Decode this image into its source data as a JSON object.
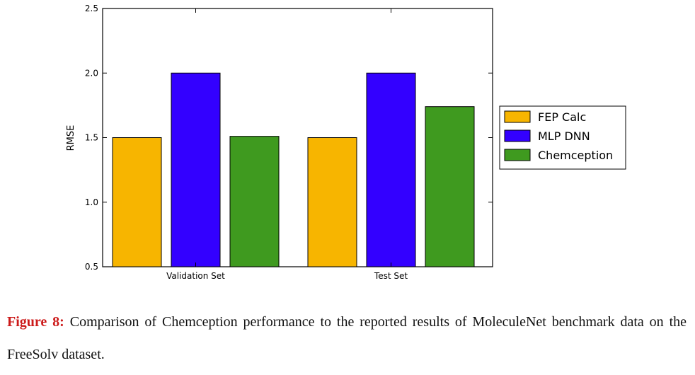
{
  "chart_data": {
    "type": "bar",
    "categories": [
      "Validation Set",
      "Test Set"
    ],
    "series": [
      {
        "name": "FEP Calc",
        "color": "#f7b500",
        "values": [
          1.5,
          1.5
        ]
      },
      {
        "name": "MLP DNN",
        "color": "#3300ff",
        "values": [
          2.0,
          2.0
        ]
      },
      {
        "name": "Chemception",
        "color": "#3f9a1f",
        "values": [
          1.51,
          1.74
        ]
      }
    ],
    "ylabel": "RMSE",
    "xlabel": "",
    "ylim": [
      0.5,
      2.5
    ],
    "yticks": [
      "0.5",
      "1.0",
      "1.5",
      "2.0",
      "2.5"
    ],
    "grid": false,
    "legend_position": "right"
  },
  "caption": {
    "label": "Figure 8:",
    "text": " Comparison of Chemception performance to the reported results of MoleculeNet benchmark data on the FreeSolv dataset."
  }
}
